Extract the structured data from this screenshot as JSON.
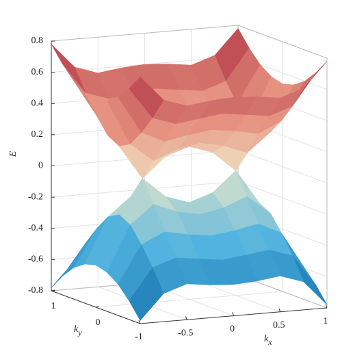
{
  "chart_data": {
    "type": "surface",
    "zlabel": "E",
    "xlabel": {
      "base": "k",
      "sub": "x"
    },
    "ylabel": {
      "base": "k",
      "sub": "y"
    },
    "x": [
      -1,
      -0.75,
      -0.5,
      -0.25,
      0,
      0.25,
      0.5,
      0.75,
      1
    ],
    "y": [
      -1,
      -0.75,
      -0.5,
      -0.25,
      0,
      0.25,
      0.5,
      0.75,
      1
    ],
    "surfaces": [
      {
        "values": [
          [
            -0.78,
            -0.62,
            -0.57,
            -0.59,
            -0.6,
            -0.59,
            -0.57,
            -0.62,
            -0.78
          ],
          [
            -0.68,
            -0.48,
            -0.43,
            -0.45,
            -0.47,
            -0.45,
            -0.43,
            -0.48,
            -0.68
          ],
          [
            -0.6,
            -0.36,
            -0.29,
            -0.32,
            -0.34,
            -0.32,
            -0.29,
            -0.36,
            -0.6
          ],
          [
            -0.55,
            -0.26,
            -0.14,
            -0.2,
            -0.23,
            -0.2,
            -0.14,
            -0.26,
            -0.55
          ],
          [
            -0.53,
            -0.22,
            0,
            -0.13,
            -0.18,
            -0.13,
            0,
            -0.22,
            -0.53
          ],
          [
            -0.55,
            -0.26,
            -0.14,
            -0.2,
            -0.23,
            -0.2,
            -0.14,
            -0.26,
            -0.55
          ],
          [
            -0.6,
            -0.36,
            -0.29,
            -0.32,
            -0.34,
            -0.32,
            -0.29,
            -0.36,
            -0.6
          ],
          [
            -0.68,
            -0.48,
            -0.43,
            -0.45,
            -0.47,
            -0.45,
            -0.43,
            -0.48,
            -0.68
          ],
          [
            -0.78,
            -0.62,
            -0.57,
            -0.59,
            -0.6,
            -0.59,
            -0.57,
            -0.62,
            -0.78
          ]
        ]
      },
      {
        "values": [
          [
            0.78,
            0.62,
            0.57,
            0.59,
            0.6,
            0.59,
            0.57,
            0.62,
            0.78
          ],
          [
            0.68,
            0.48,
            0.43,
            0.45,
            0.47,
            0.45,
            0.43,
            0.48,
            0.68
          ],
          [
            0.6,
            0.36,
            0.29,
            0.32,
            0.34,
            0.32,
            0.29,
            0.36,
            0.6
          ],
          [
            0.55,
            0.26,
            0.14,
            0.2,
            0.23,
            0.2,
            0.14,
            0.26,
            0.55
          ],
          [
            0.53,
            0.22,
            0,
            0.13,
            0.18,
            0.13,
            0,
            0.22,
            0.53
          ],
          [
            0.55,
            0.26,
            0.14,
            0.2,
            0.23,
            0.2,
            0.14,
            0.26,
            0.55
          ],
          [
            0.6,
            0.36,
            0.29,
            0.32,
            0.34,
            0.32,
            0.29,
            0.36,
            0.6
          ],
          [
            0.68,
            0.48,
            0.43,
            0.45,
            0.47,
            0.45,
            0.43,
            0.48,
            0.68
          ],
          [
            0.78,
            0.62,
            0.57,
            0.59,
            0.6,
            0.59,
            0.57,
            0.62,
            0.78
          ]
        ]
      }
    ],
    "colormap": [
      "#0a68a6",
      "#4fb2df",
      "#f1ebc9",
      "#e6907f",
      "#a62639"
    ],
    "xlim": [
      -1,
      1
    ],
    "ylim": [
      -1,
      1
    ],
    "zlim": [
      -0.8,
      0.8
    ],
    "xticks": [
      -1,
      -0.5,
      0,
      0.5,
      1
    ],
    "yticks": [
      0,
      1
    ],
    "zticks": [
      -0.8,
      -0.6,
      -0.4,
      -0.2,
      0,
      0.2,
      0.4,
      0.6,
      0.8
    ],
    "grid": true
  }
}
